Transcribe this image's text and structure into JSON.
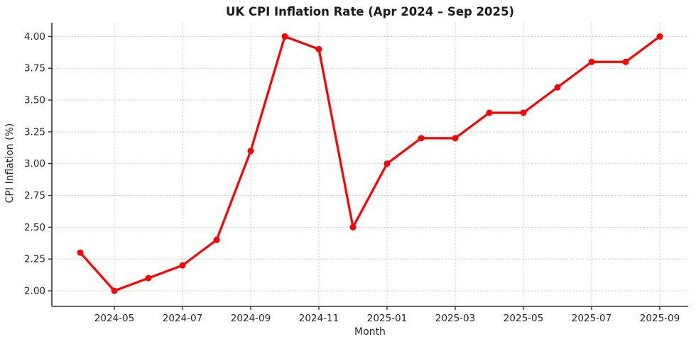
{
  "chart_data": {
    "type": "line",
    "title": "UK CPI Inflation Rate (Apr 2024 – Sep 2025)",
    "xlabel": "Month",
    "ylabel": "CPI Inflation (%)",
    "series": [
      {
        "name": "CPI Inflation",
        "x": [
          "2024-04",
          "2024-05",
          "2024-06",
          "2024-07",
          "2024-08",
          "2024-09",
          "2024-10",
          "2024-11",
          "2024-12",
          "2025-01",
          "2025-02",
          "2025-03",
          "2025-04",
          "2025-05",
          "2025-06",
          "2025-07",
          "2025-08",
          "2025-09"
        ],
        "values": [
          2.3,
          2.0,
          2.1,
          2.2,
          2.4,
          3.1,
          4.0,
          3.9,
          2.5,
          3.0,
          3.2,
          3.2,
          3.4,
          3.4,
          3.6,
          3.8,
          3.8,
          4.0
        ]
      }
    ],
    "x_tick_labels": [
      "2024-05",
      "2024-07",
      "2024-09",
      "2024-11",
      "2025-01",
      "2025-03",
      "2025-05",
      "2025-07",
      "2025-09"
    ],
    "y_ticks": [
      2.0,
      2.25,
      2.5,
      2.75,
      3.0,
      3.25,
      3.5,
      3.75,
      4.0
    ],
    "y_tick_labels": [
      "2.00",
      "2.25",
      "2.50",
      "2.75",
      "3.00",
      "3.25",
      "3.50",
      "3.75",
      "4.00"
    ],
    "ylim": [
      1.88,
      4.11
    ],
    "grid": true,
    "grid_style": "dashed",
    "legend_position": "none",
    "marker": "circle",
    "colors": {
      "line": "#ff0000",
      "marker": "#ff0000",
      "grid": "#cccccc",
      "spine": "#333333",
      "text": "#262626",
      "background": "#ffffff"
    }
  }
}
